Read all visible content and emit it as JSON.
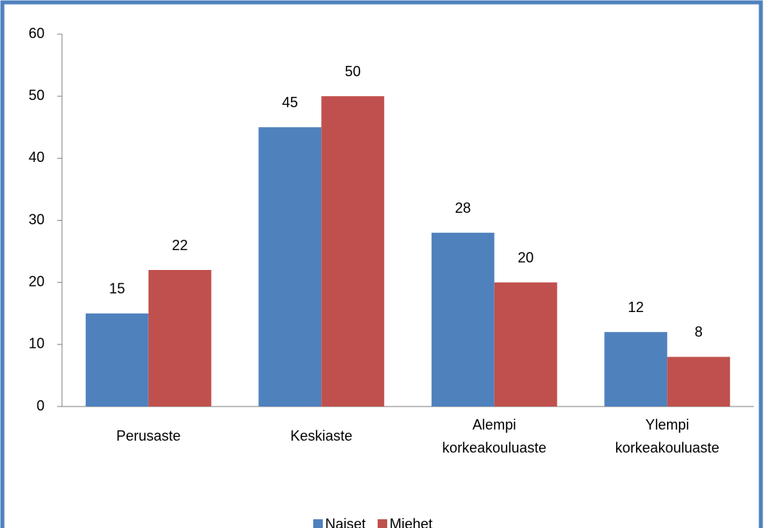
{
  "chart_data": {
    "type": "bar",
    "categories": [
      "Perusaste",
      "Keskiaste",
      "Alempi korkeakouluaste",
      "Ylempi korkeakouluaste"
    ],
    "series": [
      {
        "name": "Naiset",
        "color": "#4f81bd",
        "values": [
          15,
          45,
          28,
          12
        ]
      },
      {
        "name": "Miehet",
        "color": "#c0504d",
        "values": [
          22,
          50,
          20,
          8
        ]
      }
    ],
    "ylim": [
      0,
      60
    ],
    "yticks": [
      0,
      10,
      20,
      30,
      40,
      50,
      60
    ],
    "grid": false,
    "legend": "bottom"
  }
}
